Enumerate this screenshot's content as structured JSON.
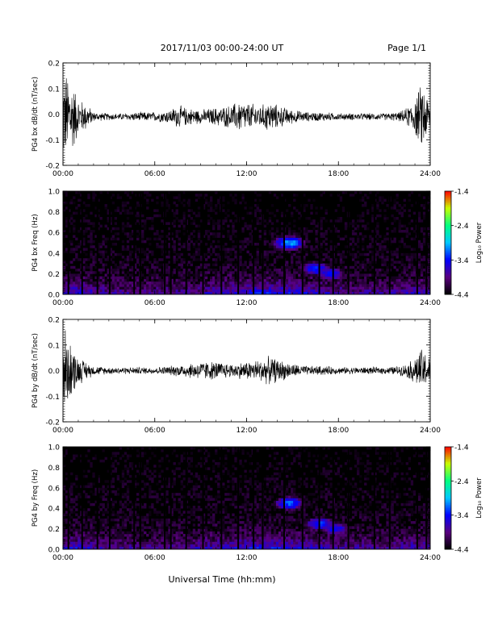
{
  "header": {
    "date_range": "2017/11/03  00:00-24:00 UT",
    "page": "Page 1/1"
  },
  "footer": {
    "xlabel": "Universal Time (hh:mm)"
  },
  "colors": {
    "trace": "#000000",
    "spectrogram_background": "#000000",
    "colormap": [
      "#000000",
      "#5a0080",
      "#0000ff",
      "#00c8ff",
      "#00ff80",
      "#c8ff00",
      "#ff0000"
    ]
  },
  "chart_data": [
    {
      "type": "line",
      "title": "",
      "xlabel": "",
      "ylabel": "PG4 bx dB/dt (nT/sec)",
      "xlim": [
        "00:00",
        "24:00"
      ],
      "ylim": [
        -0.2,
        0.2
      ],
      "x_ticks": [
        "00:00",
        "06:00",
        "12:00",
        "18:00",
        "24:00"
      ],
      "y_ticks": [
        "0.2",
        "0.1",
        "0.0",
        "-0.1",
        "-0.2"
      ],
      "series": [
        {
          "x_hours": [
            0,
            0.5,
            1,
            1.5,
            2,
            3,
            4,
            5,
            6,
            7,
            7.5,
            8,
            9,
            10,
            11,
            11.5,
            12,
            13,
            13.5,
            14,
            15,
            16,
            17,
            18,
            19,
            20,
            21,
            22,
            22.5,
            23,
            23.5,
            24
          ],
          "envelope": [
            0.2,
            0.18,
            0.08,
            0.06,
            0.02,
            0.015,
            0.015,
            0.02,
            0.02,
            0.03,
            0.05,
            0.04,
            0.03,
            0.04,
            0.05,
            0.07,
            0.06,
            0.05,
            0.07,
            0.05,
            0.03,
            0.02,
            0.02,
            0.015,
            0.015,
            0.015,
            0.015,
            0.02,
            0.04,
            0.08,
            0.15,
            0.06
          ],
          "offset": -0.01
        }
      ]
    },
    {
      "type": "heatmap",
      "title": "",
      "xlabel": "",
      "ylabel": "PG4 bx Freq (Hz)",
      "xlim": [
        "00:00",
        "24:00"
      ],
      "ylim": [
        0.0,
        1.0
      ],
      "x_ticks": [
        "00:00",
        "06:00",
        "12:00",
        "18:00",
        "24:00"
      ],
      "y_ticks": [
        "1.0",
        "0.8",
        "0.6",
        "0.4",
        "0.2",
        "0.0"
      ],
      "colorbar": {
        "label": "Log₁₀ Power",
        "ticks": [
          "-1.4",
          "-2.4",
          "-3.4",
          "-4.4"
        ],
        "range": [
          -4.4,
          -1.4
        ]
      },
      "features": [
        {
          "t": 14.8,
          "f": 0.5,
          "level": -3.0
        },
        {
          "t": 16.5,
          "f": 0.25,
          "level": -3.3
        },
        {
          "t": 17.5,
          "f": 0.2,
          "level": -3.4
        }
      ],
      "gaps_hours": [
        0.3,
        1.2,
        2.2,
        3.0,
        4.6,
        5.0,
        6.6,
        7.0,
        8.0,
        9.1,
        10.3,
        11.4,
        12.4,
        13.0,
        14.4,
        15.6,
        16.7,
        17.6,
        18.6,
        20.3,
        21.3,
        23.1,
        23.7
      ]
    },
    {
      "type": "line",
      "title": "",
      "xlabel": "",
      "ylabel": "PG4 by dB/dt (nT/sec)",
      "xlim": [
        "00:00",
        "24:00"
      ],
      "ylim": [
        -0.2,
        0.2
      ],
      "x_ticks": [
        "00:00",
        "06:00",
        "12:00",
        "18:00",
        "24:00"
      ],
      "y_ticks": [
        "0.2",
        "0.1",
        "0.0",
        "-0.1",
        "-0.2"
      ],
      "series": [
        {
          "x_hours": [
            0,
            0.5,
            1,
            1.5,
            2,
            3,
            4,
            5,
            6,
            7,
            8,
            9,
            10,
            11,
            12,
            13,
            13.5,
            14,
            15,
            16,
            17,
            18,
            19,
            20,
            21,
            22,
            22.5,
            23,
            23.5,
            24
          ],
          "envelope": [
            0.2,
            0.12,
            0.06,
            0.04,
            0.02,
            0.015,
            0.015,
            0.015,
            0.015,
            0.02,
            0.03,
            0.04,
            0.04,
            0.03,
            0.04,
            0.05,
            0.06,
            0.05,
            0.03,
            0.02,
            0.02,
            0.015,
            0.015,
            0.015,
            0.015,
            0.02,
            0.03,
            0.06,
            0.1,
            0.05
          ],
          "offset": 0.0
        }
      ]
    },
    {
      "type": "heatmap",
      "title": "",
      "xlabel": "",
      "ylabel": "PG4 by Freq (Hz)",
      "xlim": [
        "00:00",
        "24:00"
      ],
      "ylim": [
        0.0,
        1.0
      ],
      "x_ticks": [
        "00:00",
        "06:00",
        "12:00",
        "18:00",
        "24:00"
      ],
      "y_ticks": [
        "1.0",
        "0.8",
        "0.6",
        "0.4",
        "0.2",
        "0.0"
      ],
      "colorbar": {
        "label": "Log₁₀ Power",
        "ticks": [
          "-1.4",
          "-2.4",
          "-3.4",
          "-4.4"
        ],
        "range": [
          -4.4,
          -1.4
        ]
      },
      "features": [
        {
          "t": 14.8,
          "f": 0.45,
          "level": -3.2
        },
        {
          "t": 16.8,
          "f": 0.25,
          "level": -3.3
        },
        {
          "t": 17.8,
          "f": 0.2,
          "level": -3.4
        }
      ],
      "gaps_hours": [
        0.3,
        1.2,
        2.2,
        3.0,
        4.6,
        5.0,
        6.6,
        7.0,
        8.0,
        9.1,
        10.3,
        11.4,
        12.4,
        13.0,
        14.4,
        15.6,
        16.7,
        17.6,
        18.6,
        20.3,
        21.3,
        23.1,
        23.7
      ]
    }
  ]
}
